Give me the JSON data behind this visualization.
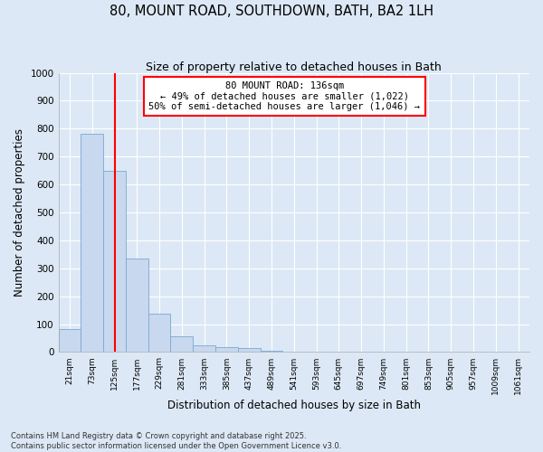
{
  "title1": "80, MOUNT ROAD, SOUTHDOWN, BATH, BA2 1LH",
  "title2": "Size of property relative to detached houses in Bath",
  "xlabel": "Distribution of detached houses by size in Bath",
  "ylabel": "Number of detached properties",
  "bin_labels": [
    "21sqm",
    "73sqm",
    "125sqm",
    "177sqm",
    "229sqm",
    "281sqm",
    "333sqm",
    "385sqm",
    "437sqm",
    "489sqm",
    "541sqm",
    "593sqm",
    "645sqm",
    "697sqm",
    "749sqm",
    "801sqm",
    "853sqm",
    "905sqm",
    "957sqm",
    "1009sqm",
    "1061sqm"
  ],
  "bar_values": [
    83,
    782,
    648,
    335,
    138,
    58,
    25,
    18,
    16,
    5,
    3,
    2,
    1,
    1,
    0,
    0,
    0,
    0,
    0,
    0,
    0
  ],
  "bar_color": "#c8d8ee",
  "bar_edge_color": "#7aa8d4",
  "vline_x": 2.0,
  "vline_color": "red",
  "annotation_text": "80 MOUNT ROAD: 136sqm\n← 49% of detached houses are smaller (1,022)\n50% of semi-detached houses are larger (1,046) →",
  "annotation_box_color": "white",
  "annotation_box_edge": "red",
  "ylim": [
    0,
    1000
  ],
  "yticks": [
    0,
    100,
    200,
    300,
    400,
    500,
    600,
    700,
    800,
    900,
    1000
  ],
  "background_color": "#dce8f5",
  "grid_color": "white",
  "footer1": "Contains HM Land Registry data © Crown copyright and database right 2025.",
  "footer2": "Contains public sector information licensed under the Open Government Licence v3.0."
}
